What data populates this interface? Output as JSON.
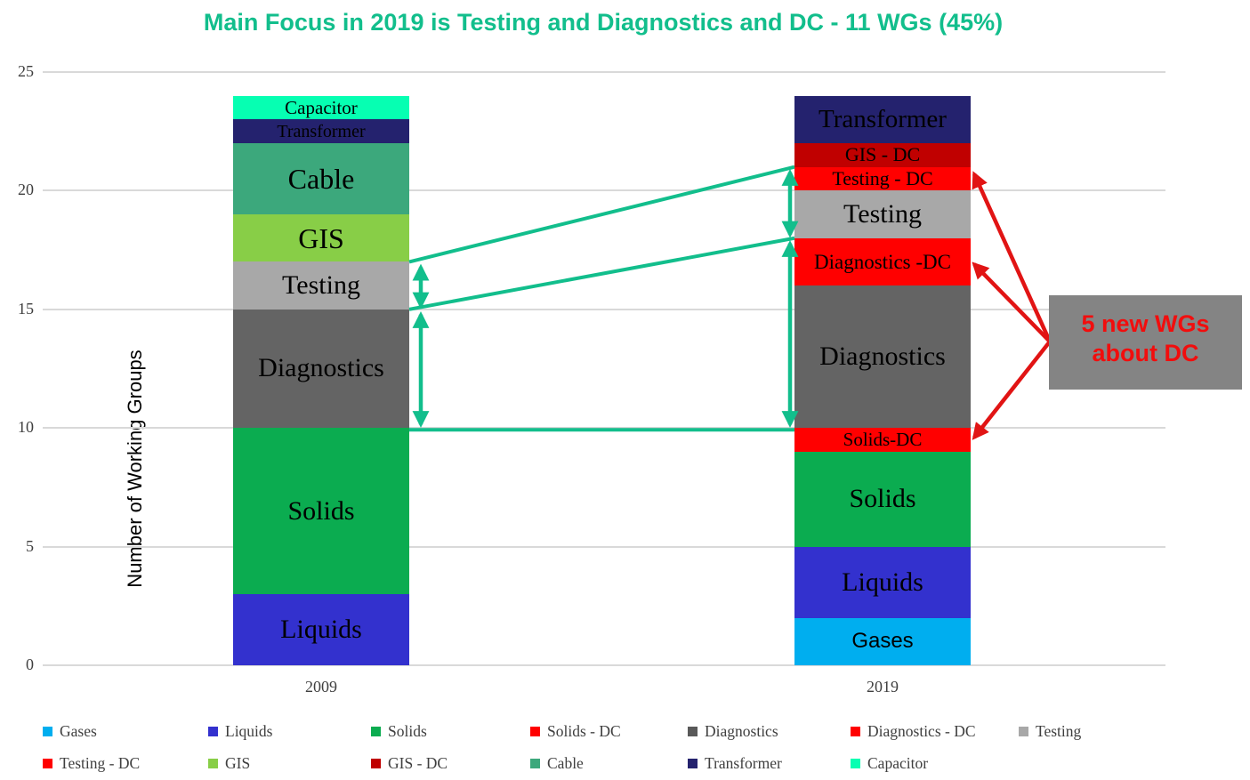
{
  "title": {
    "text": "Main Focus in 2019 is Testing and Diagnostics and DC - 11 WGs (45%)",
    "color": "#12BE8C"
  },
  "y_axis": {
    "label": "Number of Working Groups",
    "ticks": [
      {
        "label": "0",
        "value": 0
      },
      {
        "label": "5",
        "value": 5
      },
      {
        "label": "10",
        "value": 10
      },
      {
        "label": "15",
        "value": 15
      },
      {
        "label": "20",
        "value": 20
      },
      {
        "label": "25",
        "value": 25
      }
    ]
  },
  "chart_data": {
    "type": "bar",
    "stacked": true,
    "categories": [
      "2009",
      "2019"
    ],
    "title": "Main Focus in 2019 is Testing and Diagnostics and DC - 11 WGs (45%)",
    "xlabel": "",
    "ylabel": "Number of Working Groups",
    "ylim": [
      0,
      25
    ],
    "grid": true,
    "legend_position": "bottom",
    "series": [
      {
        "name": "Gases",
        "color": "#00AEEF",
        "values": [
          0,
          2
        ],
        "label_font": "sans",
        "label_sizes": [
          0,
          24
        ]
      },
      {
        "name": "Liquids",
        "color": "#3331CE",
        "values": [
          3,
          3
        ],
        "label_sizes": [
          30,
          30
        ]
      },
      {
        "name": "Solids",
        "color": "#0BAC50",
        "values": [
          7,
          4
        ],
        "label_sizes": [
          30,
          30
        ]
      },
      {
        "name": "Solids - DC",
        "color": "#FF0000",
        "values": [
          0,
          1
        ],
        "bar_labels": [
          "",
          "Solids-DC"
        ],
        "label_sizes": [
          0,
          21
        ]
      },
      {
        "name": "Diagnostics",
        "color": "#646464",
        "values": [
          5,
          6
        ],
        "label_sizes": [
          30,
          30
        ]
      },
      {
        "name": "Diagnostics - DC",
        "color": "#FF0000",
        "values": [
          0,
          2
        ],
        "bar_labels": [
          "",
          "Diagnostics -DC"
        ],
        "label_sizes": [
          0,
          23
        ]
      },
      {
        "name": "Testing",
        "color": "#A8A8A8",
        "values": [
          2,
          2
        ],
        "label_sizes": [
          30,
          30
        ]
      },
      {
        "name": "Testing - DC",
        "color": "#FF0000",
        "values": [
          0,
          1
        ],
        "label_sizes": [
          0,
          22
        ]
      },
      {
        "name": "GIS",
        "color": "#88CE47",
        "values": [
          2,
          0
        ],
        "label_sizes": [
          32,
          0
        ]
      },
      {
        "name": "GIS - DC",
        "color": "#C00000",
        "values": [
          0,
          1
        ],
        "label_sizes": [
          0,
          22
        ]
      },
      {
        "name": "Cable",
        "color": "#3CA87C",
        "values": [
          3,
          0
        ],
        "label_sizes": [
          32,
          0
        ]
      },
      {
        "name": "Transformer",
        "color": "#24226E",
        "values": [
          1,
          2
        ],
        "label_sizes": [
          20,
          29
        ]
      },
      {
        "name": "Capacitor",
        "color": "#06FFB2",
        "values": [
          1,
          0
        ],
        "label_sizes": [
          21,
          0
        ]
      }
    ]
  },
  "annotations": {
    "green_color": "#12BE8C",
    "connectors": [
      {
        "from_value": 17,
        "to_value": 21
      },
      {
        "from_value": 15,
        "to_value": 18
      }
    ],
    "spans": [
      {
        "cat": "2009",
        "from": 17,
        "to": 15
      },
      {
        "cat": "2009",
        "from": 15,
        "to": 10
      },
      {
        "cat": "2019",
        "from": 21,
        "to": 18
      },
      {
        "cat": "2019",
        "from": 18,
        "to": 10
      }
    ],
    "baseline_value": 10,
    "red_color": "#E11414",
    "red_arrow_target_values": [
      20.7,
      16.9,
      9.6
    ],
    "red_box": {
      "line1": "5 new WGs",
      "line2": "about DC",
      "bg": "#848484",
      "text_color": "#F20D0D"
    }
  },
  "legend": {
    "rows": [
      [
        {
          "label": "Gases",
          "color": "#00AEEF"
        },
        {
          "label": "Liquids",
          "color": "#3331CE"
        },
        {
          "label": "Solids",
          "color": "#0BAC50"
        },
        {
          "label": "Solids - DC",
          "color": "#FF0000"
        },
        {
          "label": "Diagnostics",
          "color": "#595959"
        },
        {
          "label": "Diagnostics - DC",
          "color": "#FF0000"
        },
        {
          "label": "Testing",
          "color": "#A8A8A8"
        }
      ],
      [
        {
          "label": "Testing - DC",
          "color": "#FF0000"
        },
        {
          "label": "GIS",
          "color": "#88CE47"
        },
        {
          "label": "GIS - DC",
          "color": "#C00000"
        },
        {
          "label": "Cable",
          "color": "#3CA87C"
        },
        {
          "label": "Transformer",
          "color": "#24226E"
        },
        {
          "label": "Capacitor",
          "color": "#06FFB2"
        }
      ]
    ]
  }
}
